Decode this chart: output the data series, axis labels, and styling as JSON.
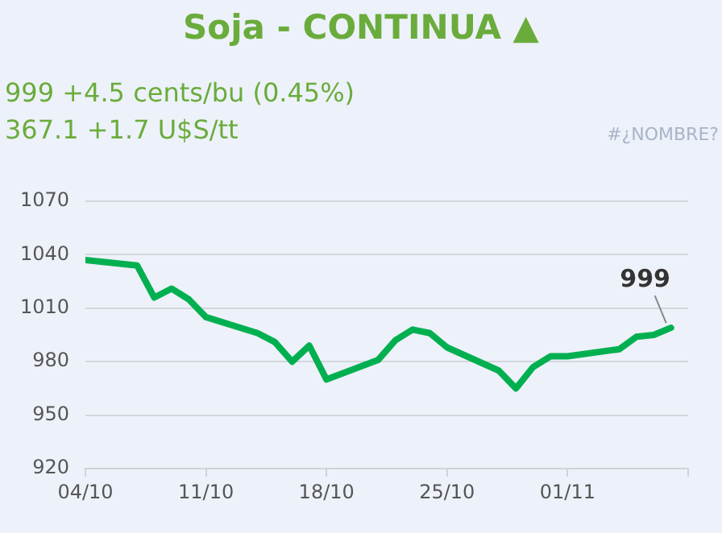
{
  "chart_data": {
    "type": "line",
    "title": "Soja - CONTINUA ▲",
    "subtitle": "999 +4.5 cents/bu (0.45%)",
    "annotations": [
      "367.1 +1.7 U$S/tt",
      "#¿NOMBRE?",
      {
        "text": "999",
        "x": "--11-07",
        "y": 999
      }
    ],
    "x": [
      "--10-04",
      "--10-07",
      "--10-08",
      "--10-09",
      "--10-10",
      "--10-11",
      "--10-14",
      "--10-15",
      "--10-16",
      "--10-17",
      "--10-18",
      "--10-21",
      "--10-22",
      "--10-23",
      "--10-24",
      "--10-25",
      "--10-28",
      "--10-29",
      "--10-30",
      "--10-31",
      "--11-01",
      "--11-04",
      "--11-05",
      "--11-06",
      "--11-07"
    ],
    "series": [
      {
        "color": "#00b050",
        "values": [
          1037,
          1034,
          1016,
          1021,
          1015,
          1005,
          996,
          991,
          980,
          989,
          970,
          981,
          992,
          998,
          996,
          988,
          975,
          965,
          977,
          983,
          983,
          987,
          994,
          995,
          999
        ]
      }
    ],
    "xlim": [
      "--10-04",
      "--11-08"
    ],
    "xticks": [
      {
        "value": "--10-04",
        "label": "04/10"
      },
      {
        "value": "--10-11",
        "label": "11/10"
      },
      {
        "value": "--10-18",
        "label": "18/10"
      },
      {
        "value": "--10-25",
        "label": "25/10"
      },
      {
        "value": "--11-01",
        "label": "01/11"
      },
      {
        "value": "--11-08",
        "label": null
      }
    ],
    "ylim": [
      920,
      1070
    ],
    "yticks": [
      920,
      950,
      980,
      1010,
      1040,
      1070
    ],
    "grid": "y",
    "legend": false,
    "marker": "none",
    "line_style": "solid"
  }
}
